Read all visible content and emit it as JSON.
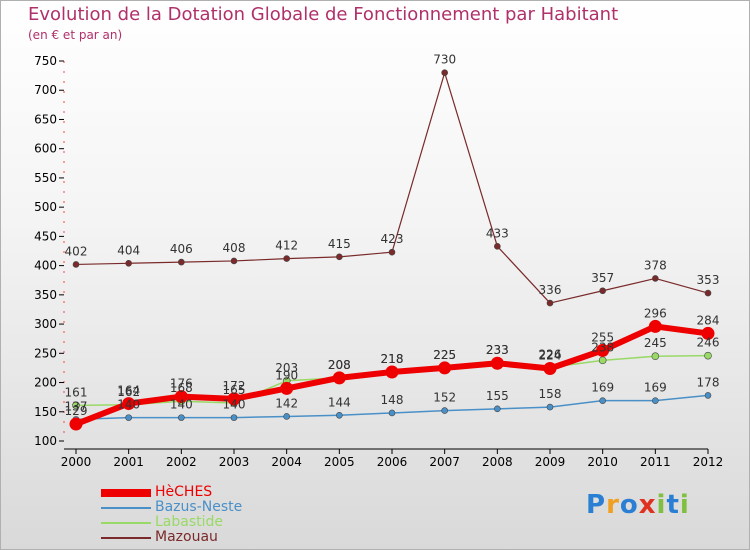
{
  "chart_data": {
    "type": "line",
    "title": "Evolution de la Dotation Globale de Fonctionnement par Habitant",
    "subtitle": "(en € et par an)",
    "categories": [
      "2000",
      "2001",
      "2002",
      "2003",
      "2004",
      "2005",
      "2006",
      "2007",
      "2008",
      "2009",
      "2010",
      "2011",
      "2012"
    ],
    "ylim": [
      100,
      750
    ],
    "yticks": [
      100,
      150,
      200,
      250,
      300,
      350,
      400,
      450,
      500,
      550,
      600,
      650,
      700,
      750
    ],
    "legend_position": "bottom-left",
    "series": [
      {
        "name": "Mazouau",
        "color": "#7a2a2a",
        "values": [
          402,
          404,
          406,
          408,
          412,
          415,
          423,
          730,
          433,
          336,
          357,
          378,
          353
        ]
      },
      {
        "name": "Bazus-Neste",
        "color": "#4a90c8",
        "values": [
          137,
          140,
          140,
          140,
          142,
          144,
          148,
          152,
          155,
          158,
          169,
          169,
          178
        ]
      },
      {
        "name": "Labastide",
        "color": "#99d966",
        "values": [
          161,
          162,
          168,
          165,
          203,
          208,
          218,
          225,
          233,
          226,
          238,
          245,
          246
        ]
      },
      {
        "name": "HèCHES",
        "color": "#ee0000",
        "values": [
          129,
          164,
          176,
          172,
          190,
          208,
          218,
          225,
          233,
          224,
          255,
          296,
          284
        ]
      }
    ],
    "legend": [
      "HèCHES",
      "Bazus-Neste",
      "Labastide",
      "Mazouau"
    ]
  },
  "logo": {
    "text": "Proxiti",
    "letters": [
      "P",
      "r",
      "o",
      "x",
      "i",
      "t",
      "i"
    ],
    "colors": [
      "#2a7fd4",
      "#f0a020",
      "#2a7fd4",
      "#e03020",
      "#80c040",
      "#2a7fd4",
      "#80c040"
    ]
  }
}
